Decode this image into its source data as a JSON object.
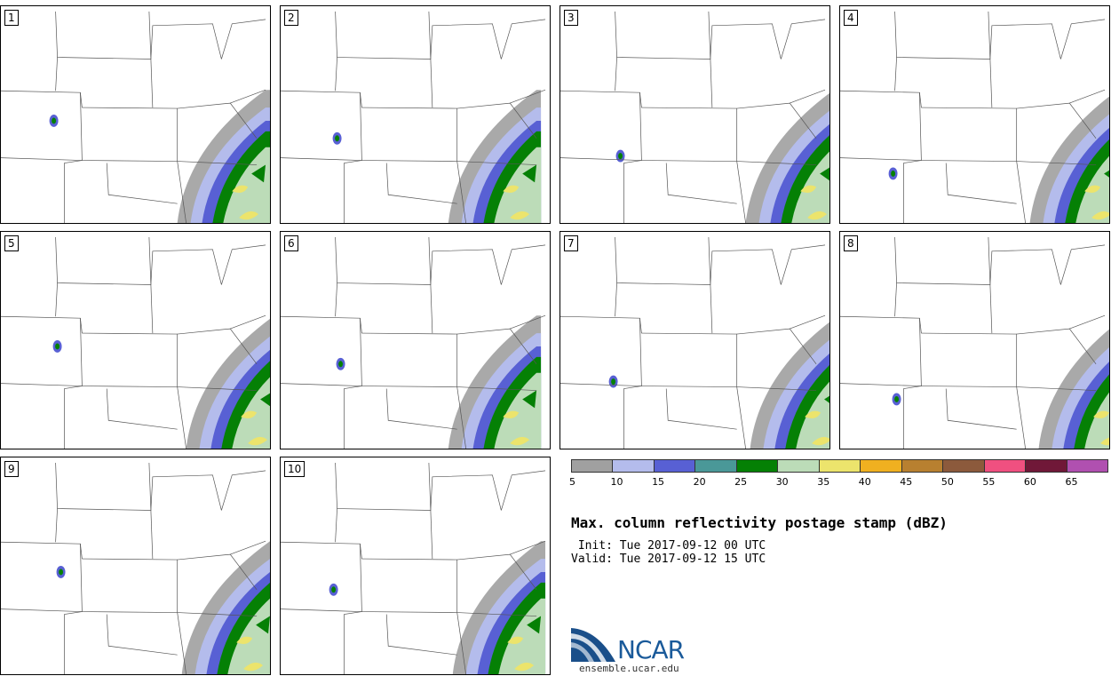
{
  "panels": [
    {
      "label": "1"
    },
    {
      "label": "2"
    },
    {
      "label": "3"
    },
    {
      "label": "4"
    },
    {
      "label": "5"
    },
    {
      "label": "6"
    },
    {
      "label": "7"
    },
    {
      "label": "8"
    },
    {
      "label": "9"
    },
    {
      "label": "10"
    }
  ],
  "colorbar": {
    "colors": [
      "#a0a0a0",
      "#b4bcec",
      "#5860d4",
      "#4a9898",
      "#058005",
      "#bcdcb8",
      "#ece46c",
      "#f0b020",
      "#b88030",
      "#8c5a3c",
      "#f05080",
      "#701838",
      "#b050b0"
    ],
    "ticks": [
      "5",
      "10",
      "15",
      "20",
      "25",
      "30",
      "35",
      "40",
      "45",
      "50",
      "55",
      "60",
      "65"
    ]
  },
  "title": "Max. column reflectivity postage stamp (dBZ)",
  "init": " Init: Tue 2017-09-12 00 UTC",
  "valid": "Valid: Tue 2017-09-12 15 UTC",
  "logo": {
    "word": "NCAR",
    "url": "ensemble.ucar.edu"
  }
}
